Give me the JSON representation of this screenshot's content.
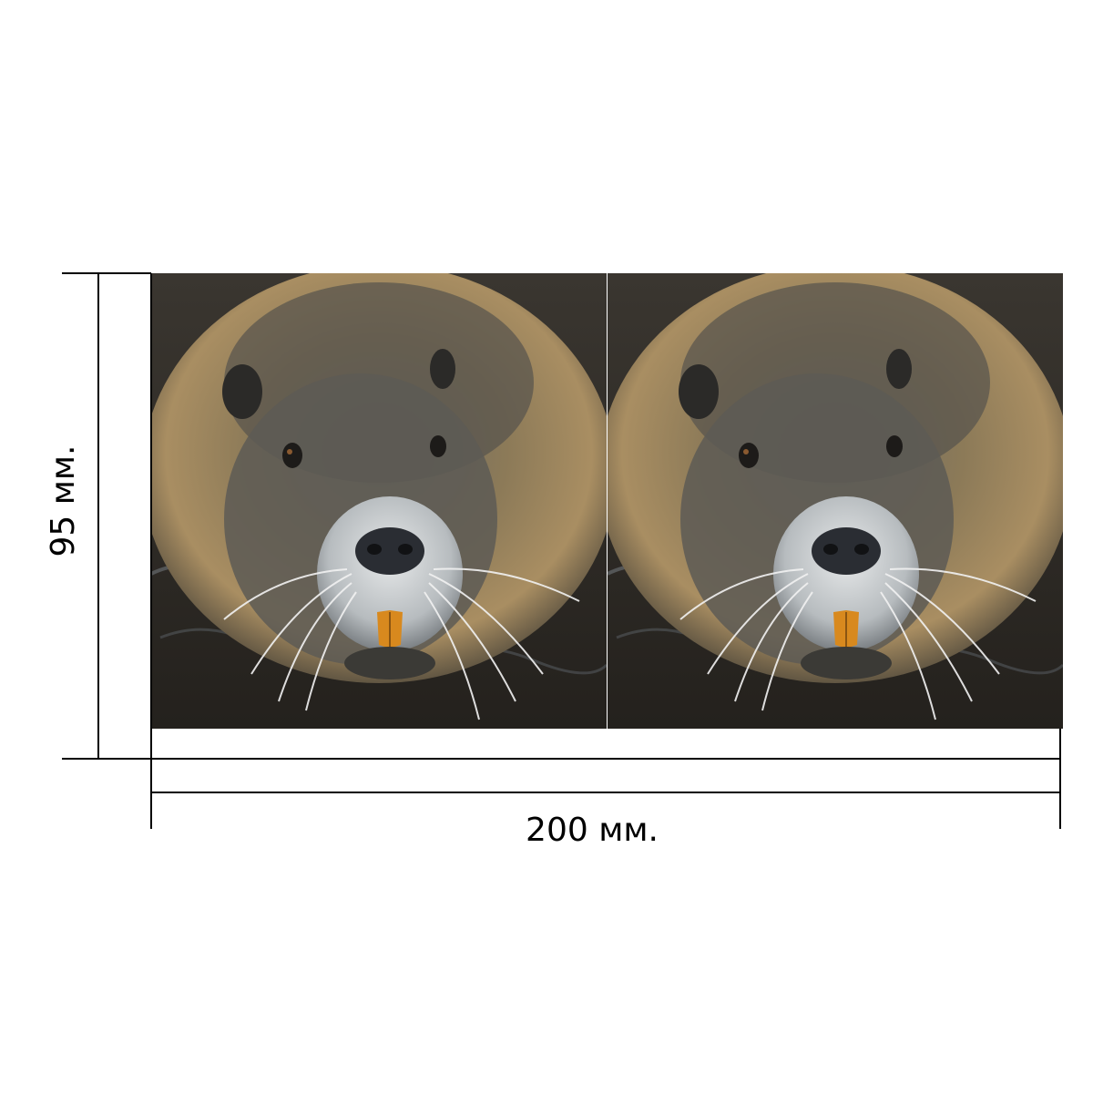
{
  "dimensions": {
    "width_label": "200 мм.",
    "height_label": "95 мм.",
    "width_mm": 200,
    "height_mm": 95
  },
  "print": {
    "panels": [
      {
        "subject": "nutria-face-icon"
      },
      {
        "subject": "nutria-face-icon"
      }
    ]
  },
  "colors": {
    "line": "#000000",
    "background": "#ffffff",
    "water": "#2f2b25",
    "fur_light": "#a98e62",
    "fur_dark": "#4b4a45",
    "muzzle": "#c9cdcf",
    "nose": "#2a2d33",
    "teeth": "#d8891e"
  }
}
